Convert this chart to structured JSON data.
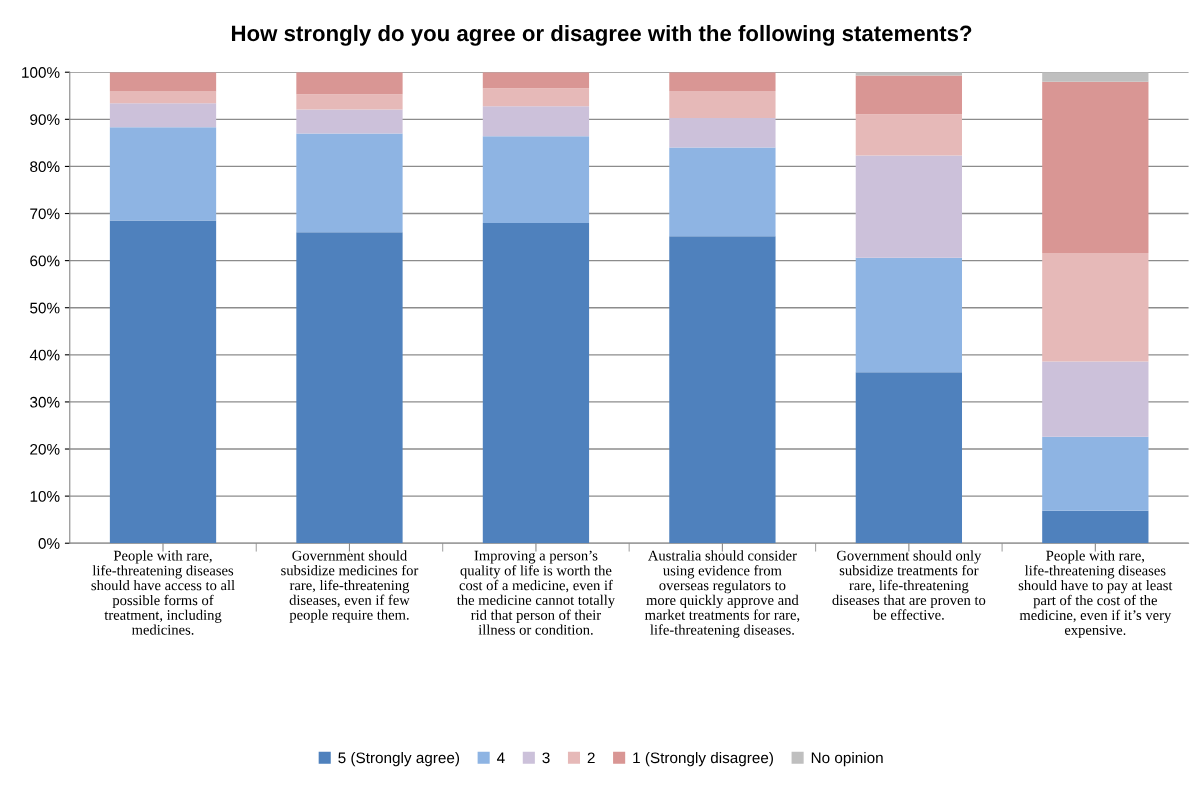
{
  "chart_data": {
    "type": "bar",
    "title": "How strongly do you agree or disagree with the following statements?",
    "categories": [
      "People with rare, life-threatening diseases should have access to all possible forms of treatment, including medicines.",
      "Government should subsidize medicines for rare, life-threatening diseases, even if few people require them.",
      "Improving a person’s quality of life is worth the cost of a medicine, even if the medicine cannot totally rid that person of their illness or condition.",
      "Australia should consider using evidence from overseas regulators to more quickly approve and market treatments for rare, life-threatening diseases.",
      "Government should only subsidize treatments for rare, life-threatening diseases that are proven to be effective.",
      "People with rare, life-threatening diseases should have to pay at least part of the cost of the medicine, even if it’s very expensive."
    ],
    "stacked": true,
    "series": [
      {
        "name": "5 (Strongly agree)",
        "color": "#4f81bd",
        "values": [
          68.5,
          66,
          68,
          65.2,
          36.3,
          6.9
        ]
      },
      {
        "name": "4",
        "color": "#8eb4e3",
        "values": [
          19.8,
          21,
          18.4,
          18.8,
          24.3,
          15.7
        ]
      },
      {
        "name": "3",
        "color": "#ccc1da",
        "values": [
          5.1,
          5.1,
          6.4,
          6.3,
          21.7,
          16
        ]
      },
      {
        "name": "2",
        "color": "#e6b9b8",
        "values": [
          2.5,
          3.2,
          3.8,
          5.7,
          8.8,
          23
        ]
      },
      {
        "name": "1 (Strongly disagree)",
        "color": "#d99694",
        "values": [
          4.1,
          4.7,
          3.4,
          4,
          8.2,
          36.4
        ]
      },
      {
        "name": "No opinion",
        "color": "#bfbfbf",
        "values": [
          0,
          0,
          0,
          0,
          0.7,
          2
        ]
      }
    ],
    "ylim": [
      0,
      100
    ],
    "yticks": [
      {
        "value": 0,
        "label": "0%"
      },
      {
        "value": 10,
        "label": "10%"
      },
      {
        "value": 20,
        "label": "20%"
      },
      {
        "value": 30,
        "label": "30%"
      },
      {
        "value": 40,
        "label": "40%"
      },
      {
        "value": 50,
        "label": "50%"
      },
      {
        "value": 60,
        "label": "60%"
      },
      {
        "value": 70,
        "label": "70%"
      },
      {
        "value": 80,
        "label": "80%"
      },
      {
        "value": 90,
        "label": "90%"
      },
      {
        "value": 100,
        "label": "100%"
      }
    ],
    "grid": "y",
    "legend": "bottom"
  }
}
